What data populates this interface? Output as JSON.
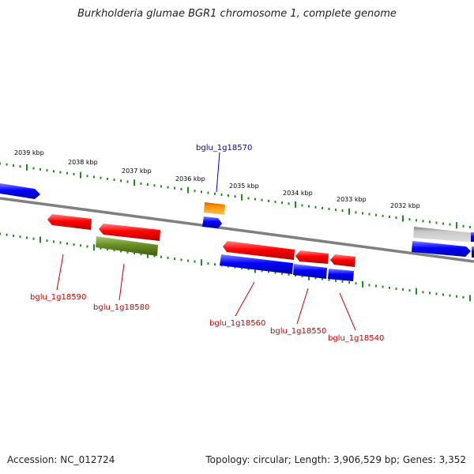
{
  "title": "Burkholderia glumae BGR1 chromosome 1, complete genome",
  "footer": {
    "accession": "Accession: NC_012724",
    "topology": "Topology: circular; Length: 3,906,529 bp; Genes: 3,352"
  },
  "ticks": [
    {
      "label": "2039 kbp"
    },
    {
      "label": "2038 kbp"
    },
    {
      "label": "2037 kbp"
    },
    {
      "label": "2036 kbp"
    },
    {
      "label": "2035 kbp"
    },
    {
      "label": "2034 kbp"
    },
    {
      "label": "2033 kbp"
    },
    {
      "label": "2032 kbp"
    }
  ],
  "gene_labels": [
    {
      "text": "bglu_1g18570",
      "color": "#0000cc"
    },
    {
      "text": "bglu_1g18590",
      "color": "#cc0000"
    },
    {
      "text": "bglu_1g18580",
      "color": "#cc0000"
    },
    {
      "text": "bglu_1g18560",
      "color": "#cc0000"
    },
    {
      "text": "bglu_1g18550",
      "color": "#cc0000"
    },
    {
      "text": "bglu_1g18540",
      "color": "#cc0000"
    }
  ],
  "colors": {
    "forward_red": "#ff0000",
    "reverse_blue": "#0000ff",
    "olive": "#6b8e23",
    "orange": "#ff9900",
    "grey": "#c0c0c0",
    "backbone": "#808080",
    "tick_green": "#228b22"
  }
}
